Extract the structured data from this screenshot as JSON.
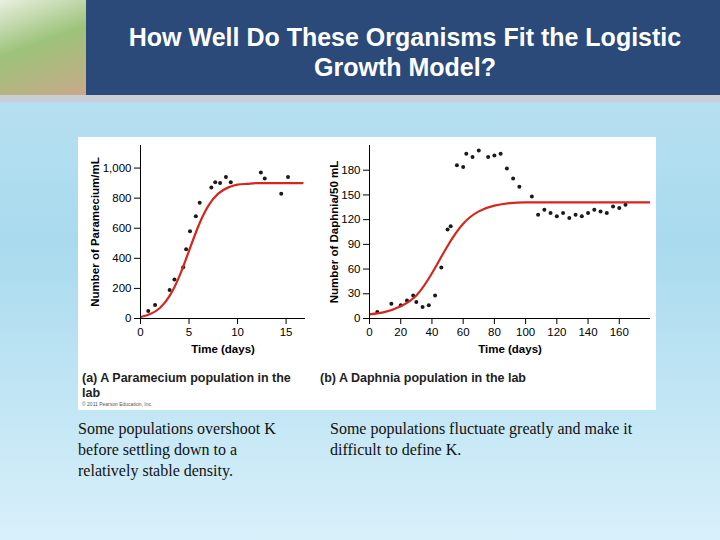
{
  "slide_title": "How Well Do These Organisms Fit the Logistic Growth Model?",
  "credit": "© 2011 Pearson Education, Inc.",
  "notes": [
    "Some populations overshoot K before settling down to a relatively stable density.",
    "Some populations fluctuate greatly and make it difficult to define K."
  ],
  "chart_data": [
    {
      "type": "scatter",
      "title": "(a) A Paramecium population in the lab",
      "x_label": "Time (days)",
      "y_label": "Number of Paramecium/mL",
      "xlim": [
        0,
        17
      ],
      "xticks": [
        0,
        5,
        10,
        15
      ],
      "ylim": [
        0,
        1150
      ],
      "yticks": [
        0,
        200,
        400,
        600,
        800,
        {
          "value": 1000,
          "label": "1,000"
        }
      ],
      "grid": false,
      "series": [
        {
          "type": "scatter",
          "color": "#1a1a1a",
          "x": [
            0.8,
            1.5,
            3,
            3.5,
            4.4,
            4.7,
            5.1,
            5.7,
            6.1,
            7.3,
            7.7,
            8.2,
            8.8,
            9.3,
            12.4,
            12.8,
            14.5,
            15.2
          ],
          "values": [
            50,
            90,
            190,
            260,
            340,
            460,
            580,
            680,
            770,
            870,
            905,
            900,
            940,
            905,
            970,
            930,
            830,
            940
          ]
        },
        {
          "type": "line",
          "color": "#d7261e",
          "x": [
            0,
            1,
            2,
            3,
            4,
            5,
            6,
            7,
            8,
            9,
            10,
            11,
            12,
            14,
            16.7
          ],
          "values": [
            10,
            30,
            70,
            150,
            280,
            450,
            620,
            750,
            830,
            870,
            890,
            895,
            900,
            900,
            900
          ]
        }
      ]
    },
    {
      "type": "scatter",
      "title": "(b) A Daphnia population in the lab",
      "x_label": "Time (days)",
      "y_label": "Number of Daphnia/50 mL",
      "xlim": [
        0,
        180
      ],
      "xticks": [
        0,
        20,
        40,
        60,
        80,
        100,
        120,
        140,
        160
      ],
      "ylim": [
        0,
        210
      ],
      "yticks": [
        0,
        30,
        60,
        90,
        120,
        150,
        180
      ],
      "grid": false,
      "series": [
        {
          "type": "scatter",
          "color": "#1a1a1a",
          "x": [
            5,
            14,
            20,
            24,
            28,
            30,
            34,
            38,
            42,
            46,
            50,
            52,
            56,
            60,
            62,
            66,
            70,
            76,
            80,
            84,
            88,
            92,
            96,
            104,
            108,
            112,
            116,
            120,
            124,
            128,
            132,
            136,
            140,
            144,
            148,
            152,
            156,
            160,
            164
          ],
          "values": [
            8,
            18,
            16,
            22,
            28,
            20,
            14,
            16,
            28,
            62,
            108,
            112,
            186,
            184,
            200,
            196,
            204,
            196,
            198,
            200,
            182,
            170,
            160,
            148,
            126,
            132,
            128,
            124,
            128,
            122,
            126,
            124,
            128,
            132,
            130,
            128,
            136,
            134,
            138
          ]
        },
        {
          "type": "line",
          "color": "#d7261e",
          "x": [
            0,
            10,
            20,
            30,
            40,
            50,
            60,
            70,
            80,
            90,
            100,
            120,
            140,
            160,
            180
          ],
          "values": [
            5,
            8,
            15,
            28,
            55,
            88,
            115,
            130,
            137,
            140,
            141,
            141,
            141,
            141,
            141
          ]
        }
      ]
    }
  ]
}
